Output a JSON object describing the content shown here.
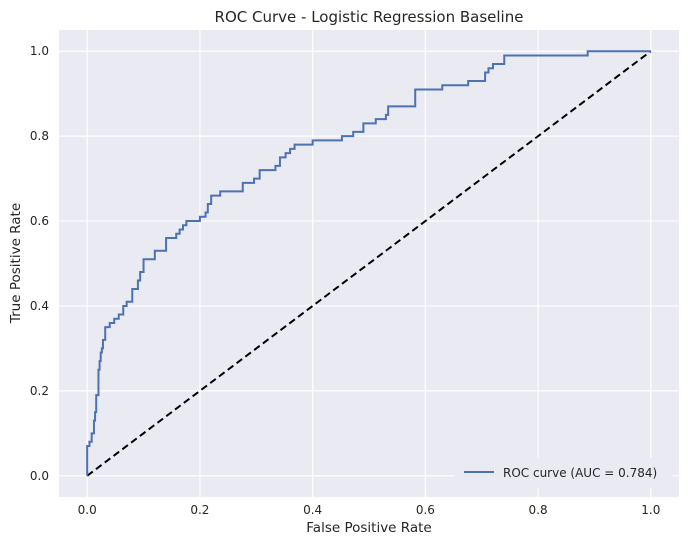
{
  "chart_data": {
    "type": "line",
    "title": "ROC Curve - Logistic Regression Baseline",
    "xlabel": "False Positive Rate",
    "ylabel": "True Positive Rate",
    "xlim": [
      -0.05,
      1.05
    ],
    "ylim": [
      -0.05,
      1.05
    ],
    "x_ticks": [
      "0.0",
      "0.2",
      "0.4",
      "0.6",
      "0.8",
      "1.0"
    ],
    "y_ticks": [
      "0.0",
      "0.2",
      "0.4",
      "0.6",
      "0.8",
      "1.0"
    ],
    "grid": true,
    "legend_position": "lower right",
    "colors": {
      "background": "#eaeaf2",
      "grid": "#ffffff",
      "roc": "#4c72b0",
      "diagonal": "#000000"
    },
    "series": [
      {
        "name": "ROC curve (AUC = 0.784)",
        "style": "solid",
        "x": [
          0,
          0,
          0.004,
          0.004,
          0.008,
          0.008,
          0.012,
          0.012,
          0.014,
          0.014,
          0.016,
          0.016,
          0.02,
          0.02,
          0.022,
          0.022,
          0.024,
          0.024,
          0.026,
          0.026,
          0.028,
          0.028,
          0.032,
          0.032,
          0.04,
          0.04,
          0.048,
          0.048,
          0.056,
          0.056,
          0.064,
          0.064,
          0.07,
          0.07,
          0.08,
          0.08,
          0.09,
          0.09,
          0.094,
          0.094,
          0.1,
          0.1,
          0.106,
          0.106,
          0.12,
          0.12,
          0.14,
          0.14,
          0.158,
          0.158,
          0.164,
          0.164,
          0.17,
          0.17,
          0.176,
          0.176,
          0.182,
          0.182,
          0.2,
          0.2,
          0.21,
          0.21,
          0.214,
          0.214,
          0.22,
          0.22,
          0.236,
          0.236,
          0.276,
          0.276,
          0.296,
          0.296,
          0.306,
          0.306,
          0.334,
          0.334,
          0.342,
          0.342,
          0.352,
          0.352,
          0.36,
          0.36,
          0.368,
          0.368,
          0.4,
          0.4,
          0.452,
          0.452,
          0.472,
          0.472,
          0.49,
          0.49,
          0.512,
          0.512,
          0.53,
          0.53,
          0.534,
          0.534,
          0.582,
          0.582,
          0.63,
          0.63,
          0.676,
          0.676,
          0.706,
          0.706,
          0.712,
          0.712,
          0.72,
          0.72,
          0.74,
          0.74,
          0.888,
          0.888,
          1.0
        ],
        "y": [
          0,
          0.07,
          0.07,
          0.08,
          0.08,
          0.1,
          0.1,
          0.13,
          0.13,
          0.15,
          0.15,
          0.19,
          0.19,
          0.25,
          0.25,
          0.27,
          0.27,
          0.29,
          0.29,
          0.3,
          0.3,
          0.32,
          0.32,
          0.35,
          0.35,
          0.36,
          0.36,
          0.37,
          0.37,
          0.38,
          0.38,
          0.4,
          0.4,
          0.41,
          0.41,
          0.44,
          0.44,
          0.46,
          0.46,
          0.48,
          0.48,
          0.51,
          0.51,
          0.51,
          0.51,
          0.53,
          0.53,
          0.56,
          0.56,
          0.57,
          0.57,
          0.58,
          0.58,
          0.59,
          0.59,
          0.6,
          0.6,
          0.6,
          0.6,
          0.61,
          0.61,
          0.62,
          0.62,
          0.64,
          0.64,
          0.66,
          0.66,
          0.67,
          0.67,
          0.69,
          0.69,
          0.7,
          0.7,
          0.72,
          0.72,
          0.73,
          0.73,
          0.75,
          0.75,
          0.76,
          0.76,
          0.77,
          0.77,
          0.78,
          0.78,
          0.79,
          0.79,
          0.8,
          0.8,
          0.81,
          0.81,
          0.83,
          0.83,
          0.84,
          0.84,
          0.85,
          0.85,
          0.87,
          0.87,
          0.91,
          0.91,
          0.92,
          0.92,
          0.93,
          0.93,
          0.95,
          0.95,
          0.96,
          0.96,
          0.97,
          0.97,
          0.99,
          0.99,
          1.0,
          1.0
        ]
      },
      {
        "style": "dashed",
        "x": [
          0,
          1
        ],
        "y": [
          0,
          1
        ]
      }
    ]
  }
}
